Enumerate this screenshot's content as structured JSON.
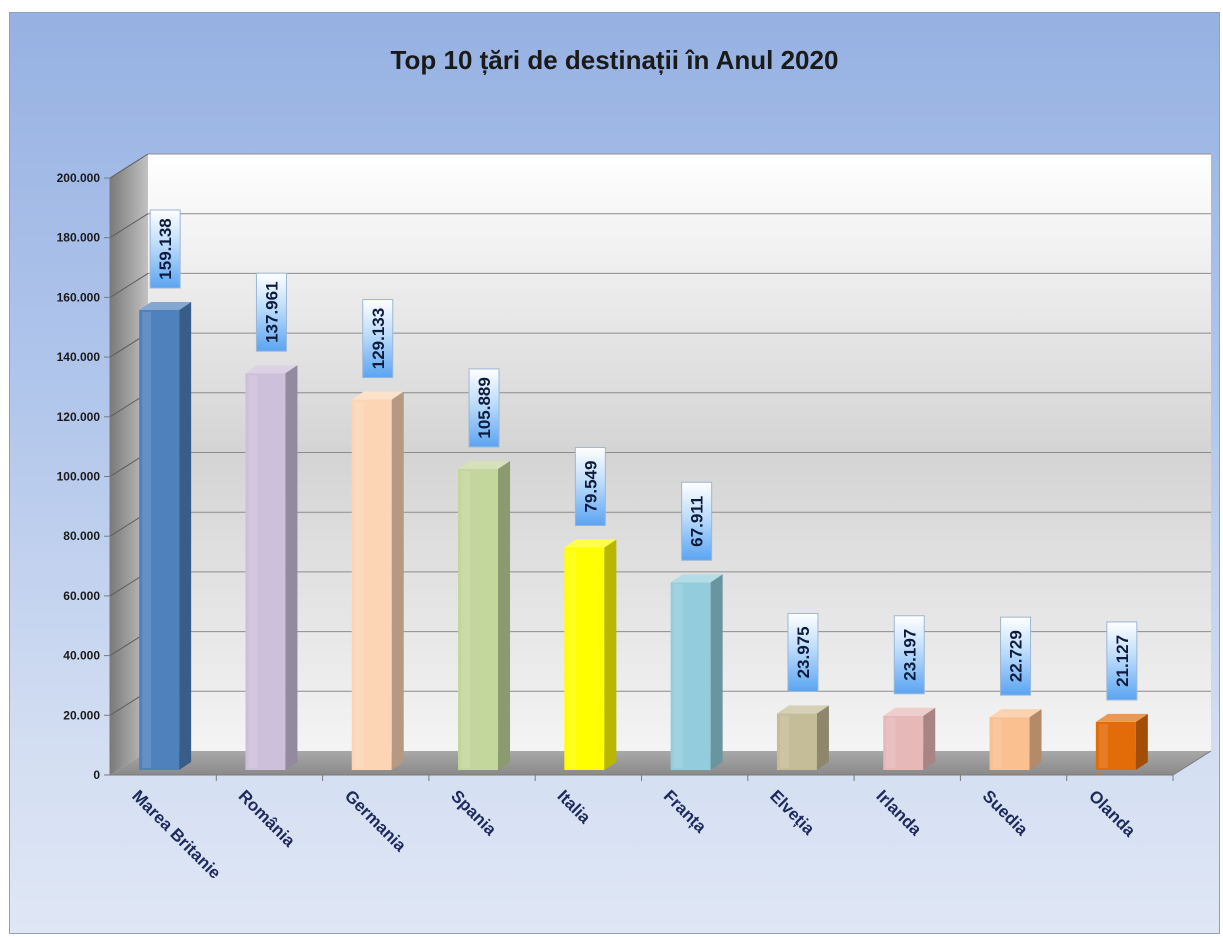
{
  "chart_data": {
    "type": "bar",
    "title": "Top 10 țări de destinații în Anul 2020",
    "xlabel": "",
    "ylabel": "",
    "categories": [
      "Marea Britanie",
      "România",
      "Germania",
      "Spania",
      "Italia",
      "Franța",
      "Elveția",
      "Irlanda",
      "Suedia",
      "Olanda"
    ],
    "values": [
      159138,
      137961,
      129133,
      105889,
      79549,
      67911,
      23975,
      23197,
      22729,
      21127
    ],
    "value_labels": [
      "159.138",
      "137.961",
      "129.133",
      "105.889",
      "79.549",
      "67.911",
      "23.975",
      "23.197",
      "22.729",
      "21.127"
    ],
    "ylim": [
      0,
      200000
    ],
    "yticks": [
      0,
      20000,
      40000,
      60000,
      80000,
      100000,
      120000,
      140000,
      160000,
      180000,
      200000
    ],
    "ytick_labels": [
      "0",
      "20.000",
      "40.000",
      "60.000",
      "80.000",
      "100.000",
      "120.000",
      "140.000",
      "160.000",
      "180.000",
      "200.000"
    ],
    "colors": [
      "#4f81bd",
      "#ccc0da",
      "#fcd5b5",
      "#c3d69b",
      "#ffff00",
      "#93cddd",
      "#c4bd97",
      "#e6b9b8",
      "#fac090",
      "#e36c09"
    ],
    "grid": true,
    "legend": "none",
    "style": "3d-column"
  }
}
